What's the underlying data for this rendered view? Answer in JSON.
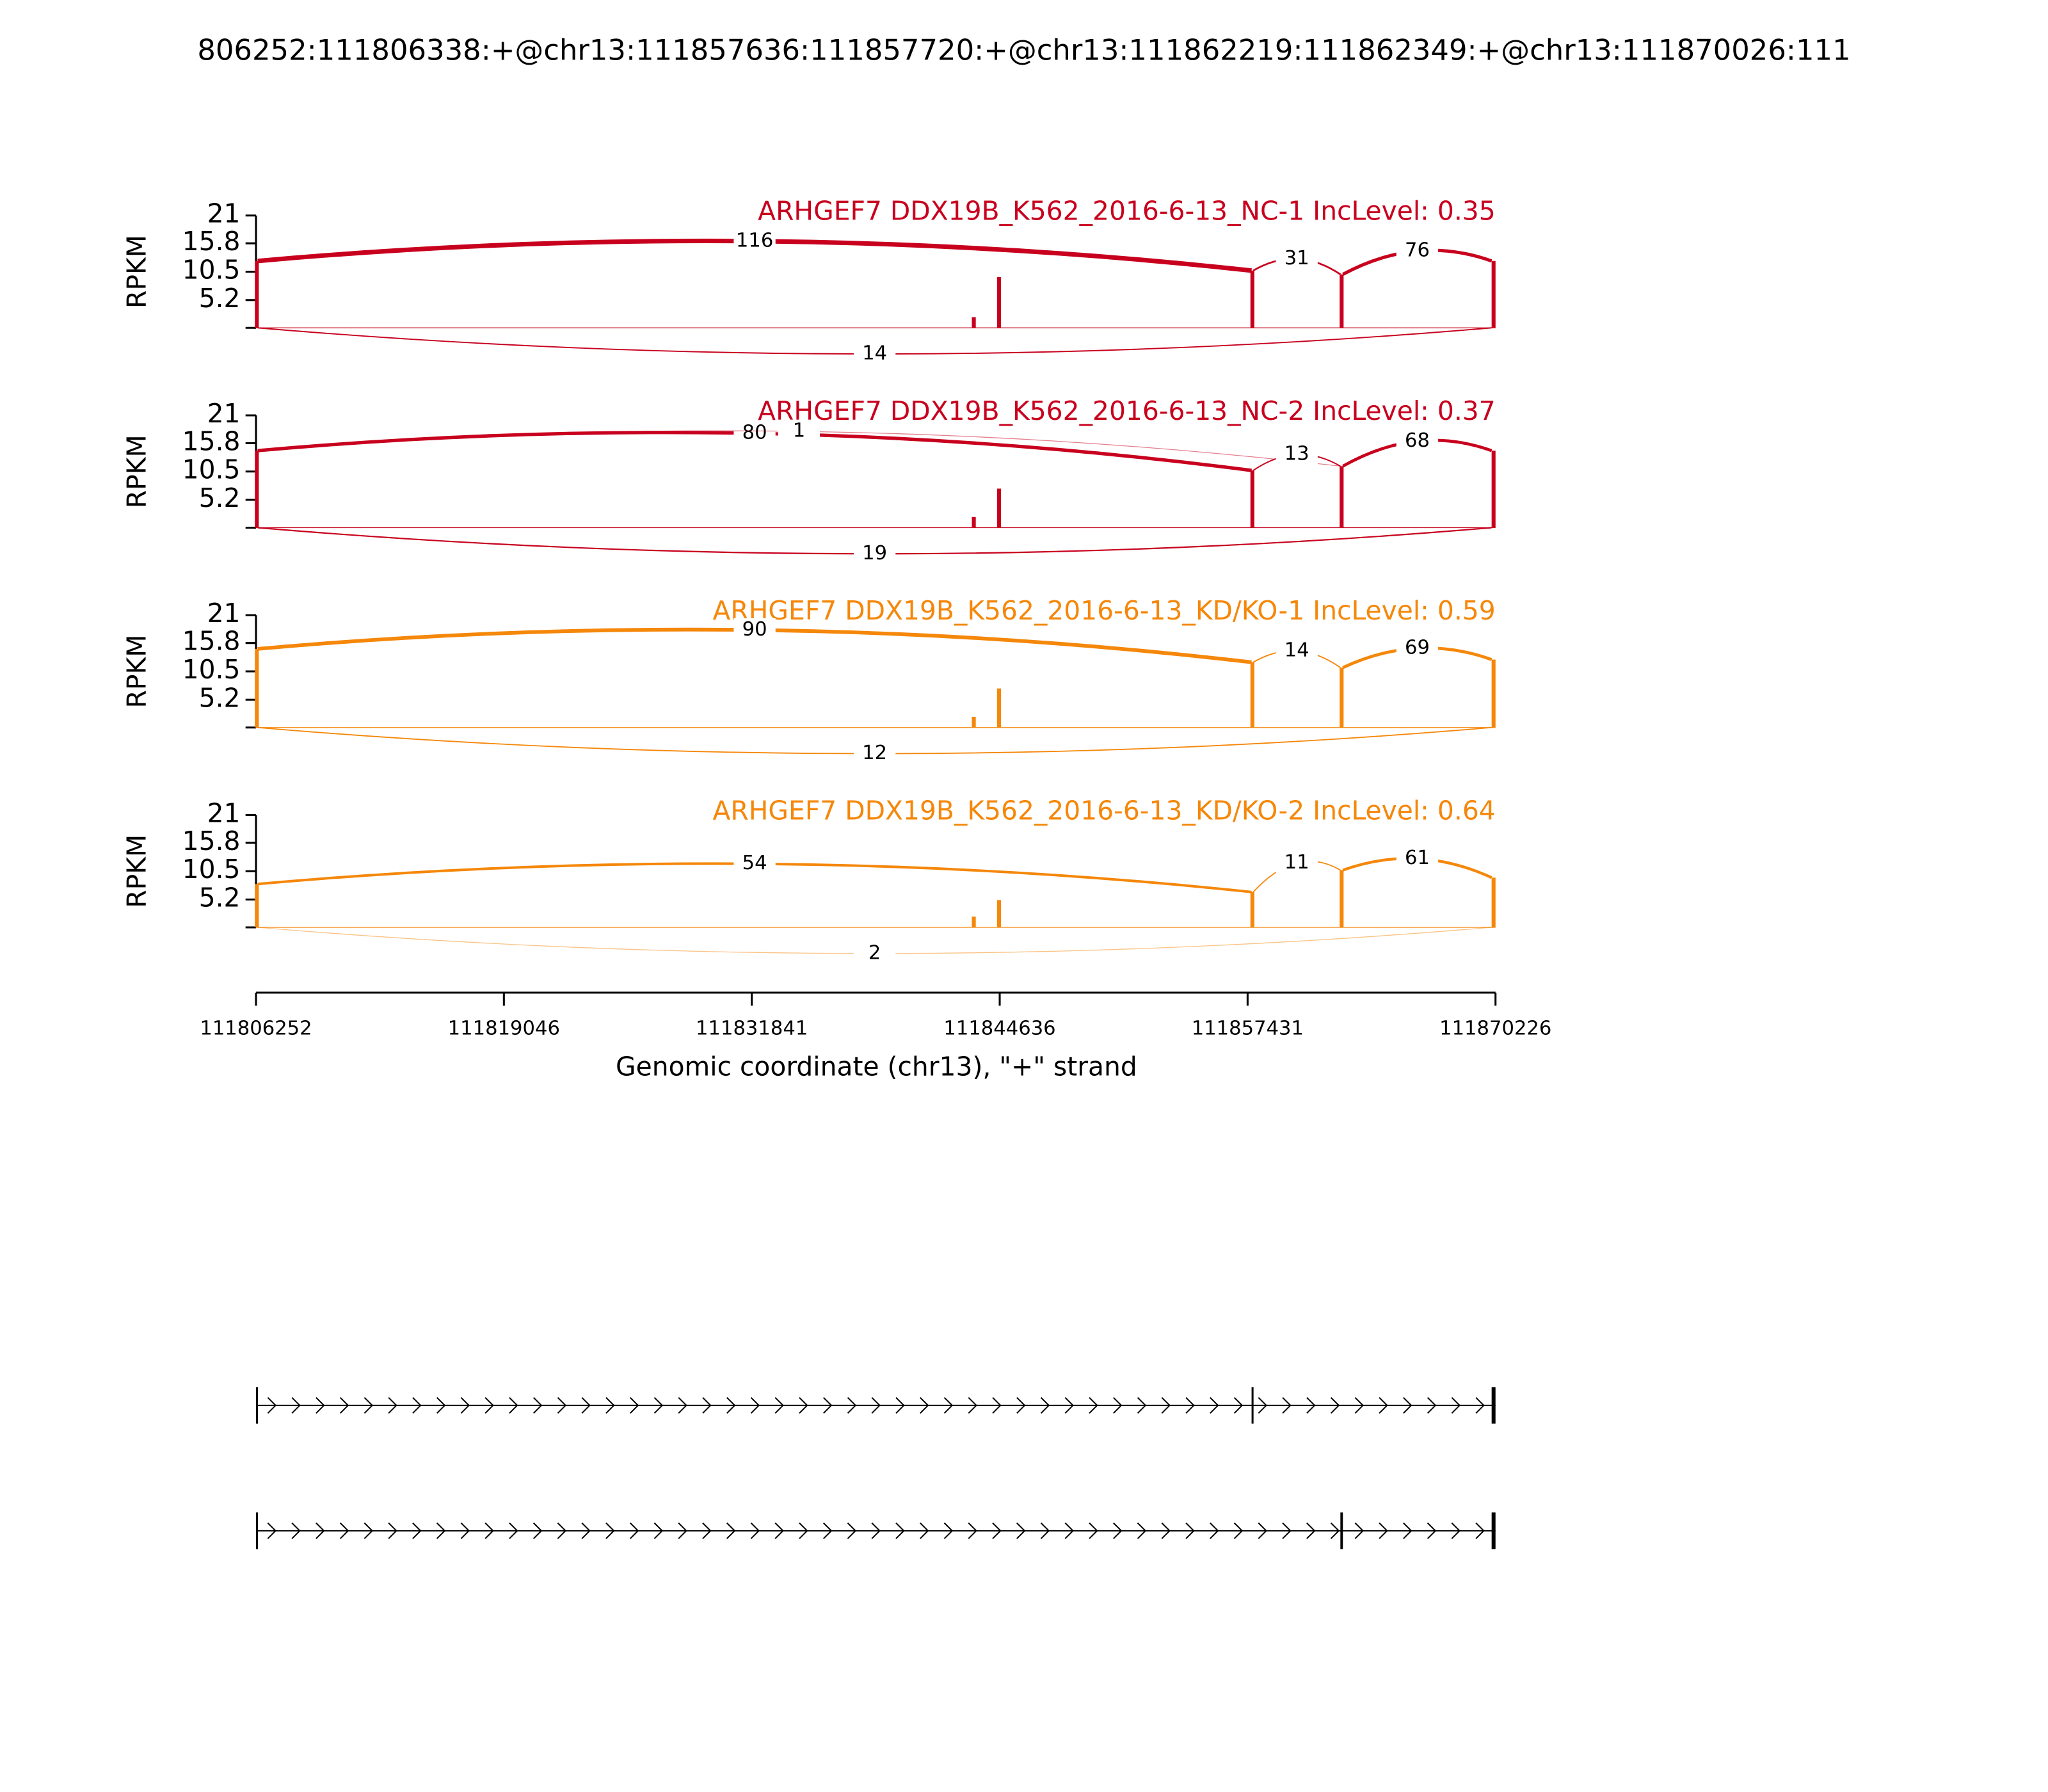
{
  "chart_data": {
    "type": "sashimi",
    "title": "806252:111806338:+@chr13:111857636:111857720:+@chr13:111862219:111862349:+@chr13:111870026:111",
    "xlabel": "Genomic coordinate (chr13), \"+\" strand",
    "xlim": [
      111806252,
      111870226
    ],
    "xticks": [
      111806252,
      111819046,
      111831841,
      111844636,
      111857431,
      111870226
    ],
    "ylabel": "RPKM",
    "panels": [
      {
        "label": "ARHGEF7 DDX19B_K562_2016-6-13_NC-1 IncLevel: 0.35",
        "color": "#c8001e",
        "ylim": [
          0,
          21
        ],
        "yticks": [
          5.2,
          10.5,
          15.8,
          21
        ],
        "coverage": {
          "x": [
            111806295,
            111843300,
            111844600,
            111857678,
            111862284,
            111870126
          ],
          "values": [
            12.5,
            2,
            9.5,
            10.7,
            10,
            12.5
          ]
        },
        "junctions": [
          {
            "start": 111806338,
            "end": 111857636,
            "count": 116,
            "side": "above"
          },
          {
            "start": 111857720,
            "end": 111862219,
            "count": 31,
            "side": "above"
          },
          {
            "start": 111862349,
            "end": 111870026,
            "count": 76,
            "side": "above"
          },
          {
            "start": 111806338,
            "end": 111870026,
            "count": 14,
            "side": "below"
          }
        ]
      },
      {
        "label": "ARHGEF7 DDX19B_K562_2016-6-13_NC-2 IncLevel: 0.37",
        "color": "#c8001e",
        "ylim": [
          0,
          21
        ],
        "yticks": [
          5.2,
          10.5,
          15.8,
          21
        ],
        "coverage": {
          "x": [
            111806295,
            111843300,
            111844600,
            111857678,
            111862284,
            111870126
          ],
          "values": [
            14.4,
            2,
            7.3,
            10.7,
            11.5,
            14.4
          ]
        },
        "junctions": [
          {
            "start": 111806338,
            "end": 111857636,
            "count": 80,
            "side": "above"
          },
          {
            "start": 111806338,
            "end": 111862219,
            "count": 1,
            "side": "above"
          },
          {
            "start": 111857720,
            "end": 111862219,
            "count": 13,
            "side": "above"
          },
          {
            "start": 111862349,
            "end": 111870026,
            "count": 68,
            "side": "above"
          },
          {
            "start": 111806338,
            "end": 111870026,
            "count": 19,
            "side": "below"
          }
        ]
      },
      {
        "label": "ARHGEF7 DDX19B_K562_2016-6-13_KD/KO-1 IncLevel: 0.59",
        "color": "#f5870a",
        "ylim": [
          0,
          21
        ],
        "yticks": [
          5.2,
          10.5,
          15.8,
          21
        ],
        "coverage": {
          "x": [
            111806295,
            111843300,
            111844600,
            111857678,
            111862284,
            111870126
          ],
          "values": [
            14.7,
            2,
            7.3,
            12.2,
            11.2,
            12.7
          ]
        },
        "junctions": [
          {
            "start": 111806338,
            "end": 111857636,
            "count": 90,
            "side": "above"
          },
          {
            "start": 111857720,
            "end": 111862219,
            "count": 14,
            "side": "above"
          },
          {
            "start": 111862349,
            "end": 111870026,
            "count": 69,
            "side": "above"
          },
          {
            "start": 111806338,
            "end": 111870026,
            "count": 12,
            "side": "below"
          }
        ]
      },
      {
        "label": "ARHGEF7 DDX19B_K562_2016-6-13_KD/KO-2 IncLevel: 0.64",
        "color": "#f5870a",
        "ylim": [
          0,
          21
        ],
        "yticks": [
          5.2,
          10.5,
          15.8,
          21
        ],
        "coverage": {
          "x": [
            111806295,
            111843300,
            111844600,
            111857678,
            111862284,
            111870126
          ],
          "values": [
            8.1,
            2,
            5.1,
            6.6,
            10.7,
            9.3
          ]
        },
        "junctions": [
          {
            "start": 111806338,
            "end": 111857636,
            "count": 54,
            "side": "above"
          },
          {
            "start": 111857720,
            "end": 111862219,
            "count": 11,
            "side": "above"
          },
          {
            "start": 111862349,
            "end": 111870026,
            "count": 61,
            "side": "above"
          },
          {
            "start": 111806338,
            "end": 111870026,
            "count": 2,
            "side": "below"
          }
        ]
      }
    ],
    "transcripts": [
      {
        "exons": [
          [
            111806252,
            111806338
          ],
          [
            111857636,
            111857720
          ],
          [
            111870026,
            111870226
          ]
        ]
      },
      {
        "exons": [
          [
            111806252,
            111806338
          ],
          [
            111862219,
            111862349
          ],
          [
            111870026,
            111870226
          ]
        ]
      }
    ]
  }
}
